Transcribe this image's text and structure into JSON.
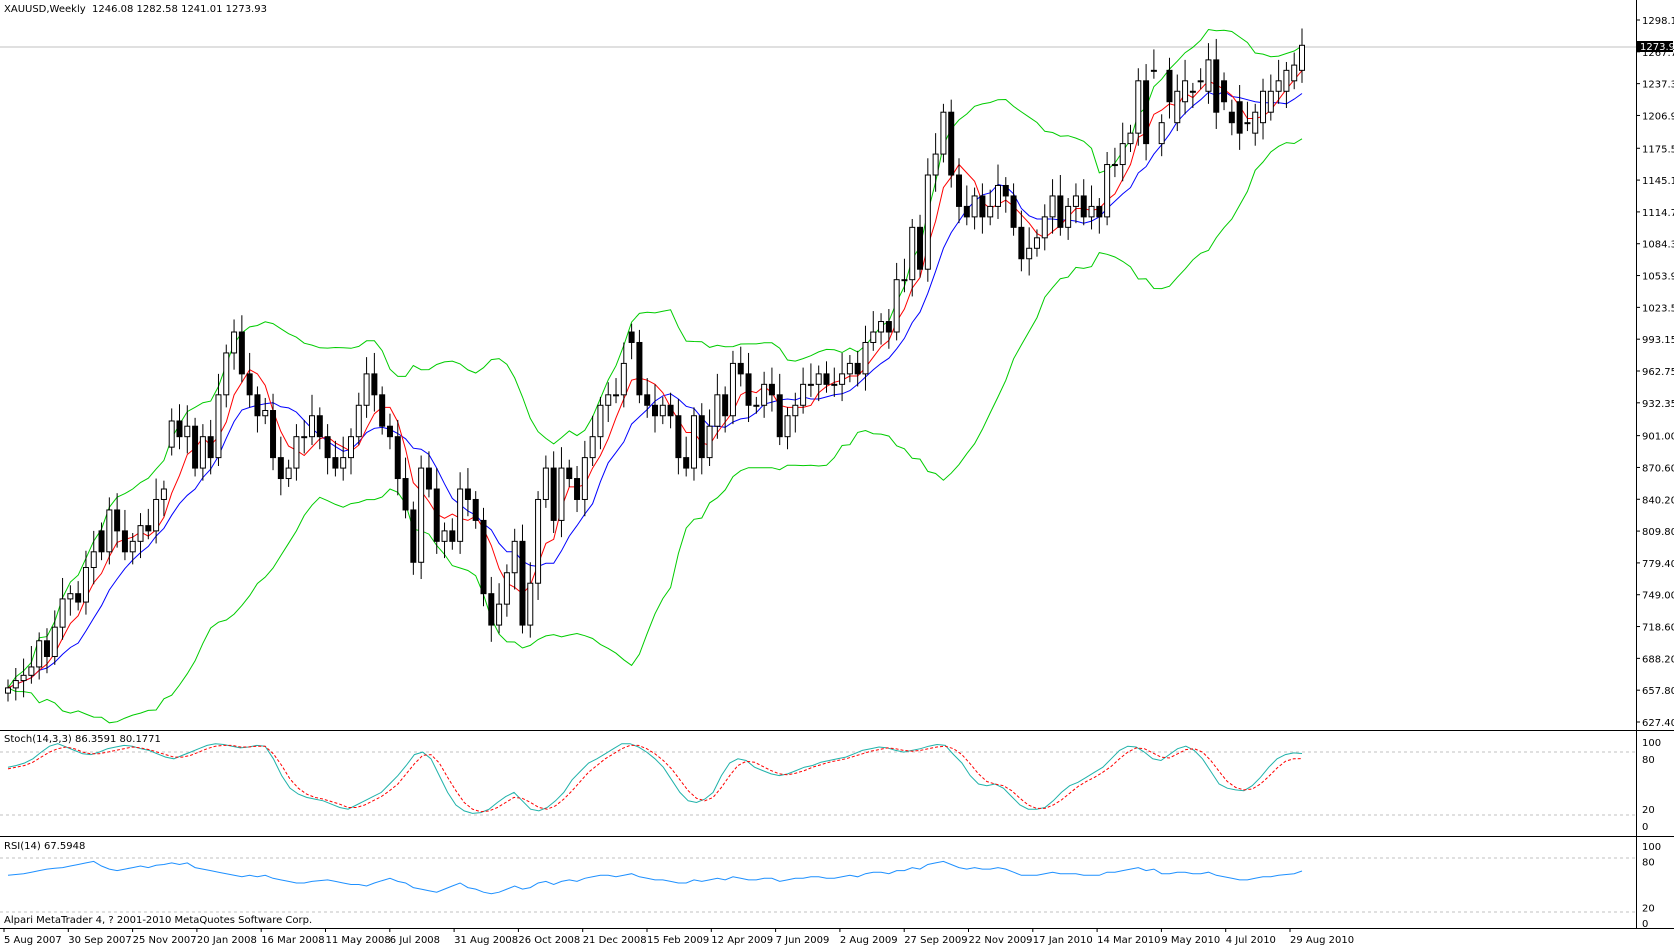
{
  "main_chart": {
    "symbol_label": "XAUUSD,Weekly",
    "ohlc_label": "1246.08 1282.58 1241.01 1273.93",
    "current_price_label": "1273.93",
    "price_axis_labels": [
      "1298.10",
      "1267.70",
      "1237.30",
      "1206.90",
      "1175.55",
      "1145.15",
      "1114.75",
      "1084.35",
      "1053.95",
      "1023.55",
      "993.15",
      "962.75",
      "932.35",
      "901.00",
      "870.60",
      "840.20",
      "809.80",
      "779.40",
      "749.00",
      "718.60",
      "688.20",
      "657.80",
      "627.40"
    ],
    "colors": {
      "bullish_fill": "#ffffff",
      "bearish_fill": "#000000",
      "bollinger": "#00cc00",
      "fast_ma": "#ff0000",
      "slow_ma": "#0000ff",
      "bid_line": "#c0c0c0"
    }
  },
  "stochastic": {
    "label": "Stoch(14,3,3) 86.3591 80.1771",
    "levels": [
      "100",
      "80",
      "20",
      "0"
    ],
    "colors": {
      "main": "#20b2aa",
      "signal": "#ff0000"
    }
  },
  "rsi": {
    "label": "RSI(14) 67.5948",
    "levels": [
      "100",
      "80",
      "20",
      "0"
    ],
    "color": "#1e90ff"
  },
  "copyright": "Alpari MetaTrader 4, ? 2001-2010 MetaQuotes Software Corp.",
  "time_axis_labels": [
    "5 Aug 2007",
    "30 Sep 2007",
    "25 Nov 2007",
    "20 Jan 2008",
    "16 Mar 2008",
    "11 May 2008",
    "6 Jul 2008",
    "31 Aug 2008",
    "26 Oct 2008",
    "21 Dec 2008",
    "15 Feb 2009",
    "12 Apr 2009",
    "7 Jun 2009",
    "2 Aug 2009",
    "27 Sep 2009",
    "22 Nov 2009",
    "17 Jan 2010",
    "14 Mar 2010",
    "9 May 2010",
    "4 Jul 2010",
    "29 Aug 2010"
  ],
  "chart_data": [
    {
      "type": "candlestick",
      "title": "XAUUSD,Weekly",
      "ylim": [
        627.4,
        1298.1
      ],
      "series": [
        {
          "name": "close",
          "values": [
            660,
            667,
            672,
            680,
            705,
            690,
            718,
            745,
            750,
            742,
            775,
            790,
            790,
            830,
            810,
            790,
            800,
            815,
            810,
            840,
            850,
            915,
            900,
            910,
            870,
            900,
            880,
            940,
            980,
            1000,
            960,
            940,
            920,
            925,
            880,
            860,
            870,
            900,
            900,
            920,
            900,
            880,
            870,
            880,
            900,
            930,
            960,
            940,
            910,
            900,
            860,
            830,
            780,
            870,
            850,
            800,
            810,
            800,
            850,
            840,
            820,
            750,
            720,
            740,
            770,
            800,
            720,
            760,
            840,
            870,
            820,
            870,
            860,
            840,
            880,
            900,
            930,
            940,
            940,
            970,
            990,
            940,
            930,
            920,
            930,
            920,
            880,
            870,
            920,
            880,
            910,
            940,
            920,
            970,
            960,
            930,
            930,
            950,
            940,
            900,
            920,
            930,
            950,
            950,
            960,
            950,
            950,
            960,
            970,
            960,
            990,
            1000,
            1010,
            1000,
            1050,
            1050,
            1100,
            1060,
            1150,
            1170,
            1210,
            1150,
            1120,
            1110,
            1130,
            1110,
            1120,
            1140,
            1130,
            1100,
            1070,
            1080,
            1090,
            1110,
            1130,
            1100,
            1120,
            1130,
            1110,
            1120,
            1110,
            1160,
            1160,
            1180,
            1190,
            1240,
            1180,
            1250,
            1200,
            1220,
            1230,
            1240,
            1230,
            1240,
            1260,
            1210,
            1220,
            1200,
            1190,
            1200,
            1210,
            1230,
            1230,
            1240,
            1250,
            1255,
            1273.93
          ]
        },
        {
          "name": "open",
          "values": [
            655,
            660,
            667,
            672,
            680,
            705,
            690,
            718,
            745,
            750,
            742,
            775,
            810,
            790,
            830,
            810,
            790,
            800,
            815,
            810,
            840,
            890,
            915,
            900,
            910,
            870,
            900,
            880,
            940,
            980,
            1000,
            960,
            940,
            920,
            925,
            880,
            860,
            870,
            900,
            900,
            920,
            900,
            880,
            870,
            880,
            900,
            930,
            960,
            940,
            910,
            900,
            860,
            830,
            780,
            870,
            850,
            800,
            810,
            800,
            850,
            840,
            820,
            750,
            720,
            740,
            770,
            800,
            720,
            760,
            840,
            870,
            820,
            870,
            860,
            840,
            880,
            900,
            930,
            940,
            940,
            1000,
            990,
            940,
            930,
            920,
            930,
            920,
            880,
            870,
            920,
            880,
            910,
            940,
            920,
            970,
            960,
            930,
            930,
            950,
            940,
            900,
            920,
            930,
            950,
            950,
            960,
            950,
            950,
            960,
            970,
            960,
            990,
            1000,
            1010,
            1000,
            1050,
            1050,
            1100,
            1060,
            1150,
            1170,
            1210,
            1150,
            1120,
            1110,
            1130,
            1110,
            1120,
            1140,
            1130,
            1100,
            1070,
            1080,
            1090,
            1110,
            1130,
            1100,
            1120,
            1130,
            1110,
            1120,
            1110,
            1160,
            1160,
            1180,
            1190,
            1240,
            1250,
            1180,
            1250,
            1200,
            1220,
            1230,
            1240,
            1230,
            1260,
            1240,
            1210,
            1220,
            1200,
            1190,
            1200,
            1210,
            1230,
            1230,
            1240,
            1250,
            1246.08
          ]
        }
      ]
    },
    {
      "type": "line",
      "title": "Stoch(14,3,3) 86.3591 80.1771",
      "ylim": [
        0,
        100
      ],
      "series": [
        {
          "name": "main",
          "values": [
            70,
            72,
            75,
            80,
            88,
            95,
            98,
            94,
            90,
            86,
            85,
            88,
            92,
            94,
            96,
            95,
            92,
            90,
            86,
            82,
            80,
            84,
            88,
            92,
            96,
            98,
            97,
            95,
            93,
            94,
            96,
            95,
            80,
            60,
            45,
            38,
            34,
            32,
            30,
            26,
            22,
            20,
            25,
            30,
            35,
            40,
            50,
            60,
            72,
            85,
            88,
            80,
            60,
            40,
            25,
            18,
            15,
            16,
            20,
            28,
            35,
            40,
            30,
            20,
            18,
            22,
            30,
            40,
            55,
            65,
            75,
            80,
            86,
            92,
            98,
            98,
            94,
            88,
            80,
            70,
            55,
            40,
            30,
            28,
            32,
            40,
            60,
            75,
            80,
            78,
            70,
            66,
            62,
            60,
            62,
            66,
            70,
            72,
            76,
            78,
            80,
            82,
            86,
            90,
            92,
            94,
            93,
            90,
            88,
            90,
            92,
            95,
            97,
            96,
            85,
            75,
            60,
            50,
            48,
            50,
            45,
            35,
            25,
            20,
            20,
            22,
            30,
            40,
            48,
            52,
            58,
            64,
            70,
            80,
            90,
            95,
            94,
            88,
            80,
            78,
            85,
            92,
            95,
            90,
            80,
            65,
            50,
            45,
            43,
            42,
            48,
            58,
            70,
            80,
            85,
            87,
            86.36
          ]
        },
        {
          "name": "signal",
          "values": [
            68,
            70,
            72,
            76,
            82,
            88,
            92,
            94,
            92,
            88,
            86,
            86,
            88,
            90,
            92,
            94,
            93,
            91,
            88,
            85,
            82,
            82,
            84,
            88,
            92,
            95,
            96,
            96,
            94,
            94,
            95,
            95,
            86,
            72,
            56,
            45,
            38,
            34,
            32,
            29,
            26,
            22,
            22,
            25,
            30,
            35,
            42,
            50,
            62,
            74,
            84,
            85,
            75,
            58,
            42,
            28,
            20,
            17,
            18,
            22,
            28,
            34,
            33,
            28,
            22,
            20,
            24,
            32,
            42,
            53,
            64,
            72,
            80,
            86,
            92,
            96,
            96,
            92,
            86,
            78,
            68,
            55,
            42,
            33,
            30,
            34,
            46,
            60,
            72,
            77,
            76,
            71,
            66,
            62,
            61,
            63,
            66,
            70,
            73,
            76,
            78,
            80,
            83,
            86,
            89,
            91,
            93,
            92,
            90,
            89,
            90,
            92,
            94,
            95,
            92,
            85,
            74,
            62,
            53,
            50,
            48,
            42,
            33,
            25,
            21,
            21,
            25,
            31,
            39,
            47,
            53,
            58,
            64,
            71,
            80,
            88,
            93,
            92,
            87,
            82,
            81,
            86,
            91,
            92,
            88,
            78,
            65,
            53,
            46,
            43,
            44,
            50,
            59,
            69,
            77,
            80,
            80.18
          ]
        }
      ]
    },
    {
      "type": "line",
      "title": "RSI(14) 67.5948",
      "ylim": [
        0,
        100
      ],
      "series": [
        {
          "name": "RSI(14)",
          "values": [
            62,
            63,
            64,
            66,
            68,
            70,
            71,
            72,
            74,
            76,
            78,
            80,
            74,
            70,
            68,
            70,
            72,
            74,
            72,
            75,
            76,
            78,
            76,
            78,
            72,
            70,
            68,
            66,
            64,
            62,
            60,
            62,
            60,
            62,
            58,
            56,
            54,
            52,
            52,
            54,
            55,
            56,
            54,
            52,
            50,
            50,
            48,
            52,
            55,
            58,
            54,
            52,
            46,
            44,
            42,
            40,
            44,
            48,
            52,
            46,
            44,
            40,
            38,
            40,
            44,
            48,
            44,
            46,
            52,
            54,
            50,
            54,
            56,
            54,
            58,
            60,
            62,
            62,
            60,
            62,
            64,
            60,
            58,
            56,
            56,
            54,
            52,
            52,
            56,
            54,
            56,
            58,
            56,
            60,
            58,
            56,
            56,
            58,
            58,
            54,
            56,
            58,
            58,
            60,
            60,
            58,
            58,
            60,
            62,
            60,
            64,
            66,
            66,
            64,
            68,
            68,
            72,
            70,
            76,
            78,
            80,
            76,
            72,
            70,
            72,
            70,
            70,
            72,
            70,
            66,
            62,
            62,
            62,
            64,
            66,
            64,
            64,
            64,
            62,
            62,
            62,
            66,
            66,
            68,
            70,
            72,
            68,
            70,
            64,
            64,
            66,
            66,
            64,
            64,
            66,
            62,
            60,
            58,
            56,
            56,
            58,
            60,
            60,
            62,
            63,
            64,
            67.59
          ]
        }
      ]
    }
  ]
}
